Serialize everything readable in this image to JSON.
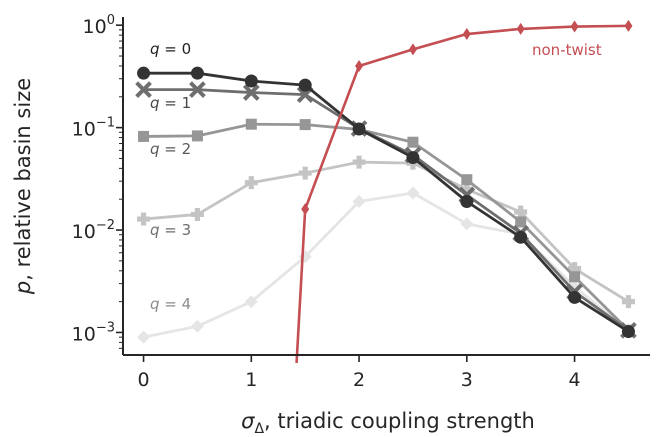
{
  "chart_data": {
    "type": "line",
    "xlabel_main": "σ",
    "xlabel_sub": "Δ",
    "xlabel_rest": ", triadic coupling strength",
    "ylabel_main": "p",
    "ylabel_rest": ", relative basin size",
    "xlim": [
      -0.2,
      4.7
    ],
    "ylim_log10": [
      -3.22,
      0.08
    ],
    "yscale": "log",
    "grid": false,
    "x_ticks": [
      0,
      1,
      2,
      3,
      4
    ],
    "x_tick_labels": [
      "0",
      "1",
      "2",
      "3",
      "4"
    ],
    "y_ticks": [
      1,
      0.1,
      0.01,
      0.001
    ],
    "y_tick_labels": [
      {
        "base": "10",
        "exp": "0"
      },
      {
        "base": "10",
        "exp": "−1"
      },
      {
        "base": "10",
        "exp": "−2"
      },
      {
        "base": "10",
        "exp": "−3"
      }
    ],
    "series": [
      {
        "key": "q4",
        "label_var": "q",
        "label_rest": " = 4",
        "color": "#e5e5e5",
        "label_color": "#8c8c8c",
        "marker": "diamond",
        "x": [
          0,
          0.5,
          1,
          1.5,
          2,
          2.5,
          3,
          3.5,
          4,
          4.5
        ],
        "y": [
          0.0009,
          0.00115,
          0.002,
          0.0055,
          0.019,
          0.023,
          0.0115,
          0.0091,
          0.0028,
          0.00105
        ]
      },
      {
        "key": "q3",
        "label_var": "q",
        "label_rest": " = 3",
        "color": "#c4c4c4",
        "label_color": "#6e6e6e",
        "marker": "plus",
        "x": [
          0,
          0.5,
          1,
          1.5,
          2,
          2.5,
          3,
          3.5,
          4,
          4.5
        ],
        "y": [
          0.0128,
          0.0142,
          0.029,
          0.036,
          0.046,
          0.045,
          0.025,
          0.015,
          0.0042,
          0.002
        ]
      },
      {
        "key": "q2",
        "label_var": "q",
        "label_rest": " = 2",
        "color": "#969696",
        "label_color": "#5a5a5a",
        "marker": "square",
        "x": [
          0,
          0.5,
          1,
          1.5,
          2,
          2.5,
          3,
          3.5,
          4,
          4.5
        ],
        "y": [
          0.082,
          0.083,
          0.108,
          0.107,
          0.096,
          0.072,
          0.031,
          0.012,
          0.0035,
          0.00105
        ]
      },
      {
        "key": "q1",
        "label_var": "q",
        "label_rest": " = 1",
        "color": "#6e6e6e",
        "label_color": "#474747",
        "marker": "x",
        "x": [
          0,
          0.5,
          1,
          1.5,
          2,
          2.5,
          3,
          3.5,
          4,
          4.5
        ],
        "y": [
          0.235,
          0.235,
          0.22,
          0.21,
          0.098,
          0.054,
          0.022,
          0.0093,
          0.0025,
          0.00105
        ]
      },
      {
        "key": "q0",
        "label_var": "q",
        "label_rest": " = 0",
        "color": "#333333",
        "label_color": "#222222",
        "marker": "circle",
        "x": [
          0,
          0.5,
          1,
          1.5,
          2,
          2.5,
          3,
          3.5,
          4,
          4.5
        ],
        "y": [
          0.34,
          0.34,
          0.285,
          0.26,
          0.097,
          0.051,
          0.019,
          0.0085,
          0.0022,
          0.00102
        ]
      },
      {
        "key": "nontwist",
        "label_var": "",
        "label_rest": "non-twist",
        "color": "#c44e52",
        "label_color": "#c44e52",
        "marker": "thin_diamond",
        "x": [
          1.5,
          2,
          2.5,
          3,
          3.5,
          4,
          4.5
        ],
        "y": [
          0.016,
          0.4,
          0.58,
          0.82,
          0.92,
          0.97,
          0.985
        ],
        "tail_to_below_axis_x": 1.42
      }
    ]
  }
}
